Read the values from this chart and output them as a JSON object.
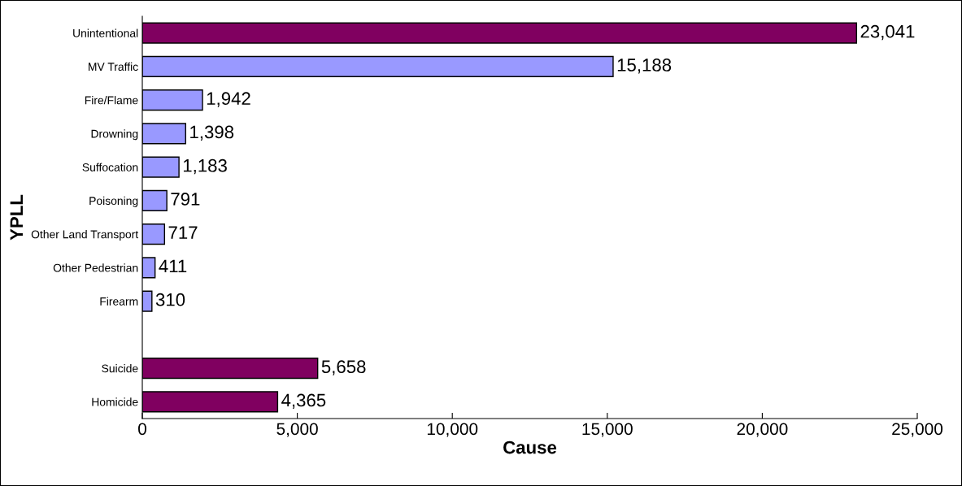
{
  "chart_data": {
    "type": "bar",
    "orientation": "horizontal",
    "xlabel": "Cause",
    "ylabel": "YPLL",
    "categories": [
      "Unintentional",
      "MV Traffic",
      "Fire/Flame",
      "Drowning",
      "Suffocation",
      "Poisoning",
      "Other Land Transport",
      "Other Pedestrian",
      "Firearm",
      null,
      "Suicide",
      "Homicide"
    ],
    "values": [
      23041,
      15188,
      1942,
      1398,
      1183,
      791,
      717,
      411,
      310,
      null,
      5658,
      4365
    ],
    "colors": [
      "#800060",
      "#9999ff",
      "#9999ff",
      "#9999ff",
      "#9999ff",
      "#9999ff",
      "#9999ff",
      "#9999ff",
      "#9999ff",
      null,
      "#800060",
      "#800060"
    ],
    "value_labels": [
      "23,041",
      "15,188",
      "1,942",
      "1,398",
      "1,183",
      "791",
      "717",
      "411",
      "310",
      null,
      "5,658",
      "4,365"
    ],
    "xlim": [
      0,
      25000
    ],
    "xticks": [
      0,
      {
        "value": 5000,
        "label": "5,000"
      },
      {
        "value": 10000,
        "label": "10,000"
      },
      {
        "value": 15000,
        "label": "15,000"
      },
      {
        "value": 20000,
        "label": "20,000"
      },
      {
        "value": 25000,
        "label": "25,000"
      }
    ],
    "grid": false,
    "legend": false
  }
}
